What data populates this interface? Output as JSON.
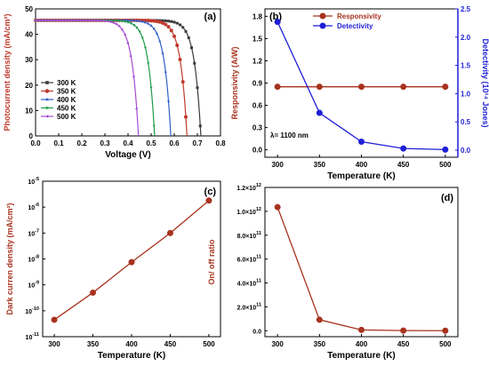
{
  "chart_data": [
    {
      "panel": "(a)",
      "type": "line",
      "xlabel": "Voltage (V)",
      "ylabel": "Photocurrent density (mA/cm²)",
      "xlim": [
        0.0,
        0.8
      ],
      "ylim": [
        0,
        50
      ],
      "xticks": [
        "0.0",
        "0.1",
        "0.2",
        "0.3",
        "0.4",
        "0.5",
        "0.6",
        "0.7",
        "0.8"
      ],
      "yticks": [
        "0",
        "10",
        "20",
        "30",
        "40",
        "50"
      ],
      "legend_position": "bottom-left",
      "series": [
        {
          "name": "300 K",
          "color": "#3a3a3a",
          "voc": 0.715
        },
        {
          "name": "350 K",
          "color": "#c0392b",
          "voc": 0.655
        },
        {
          "name": "400 K",
          "color": "#2e5fc9",
          "voc": 0.585
        },
        {
          "name": "450 K",
          "color": "#1f9a4a",
          "voc": 0.515
        },
        {
          "name": "500 K",
          "color": "#a64ad6",
          "voc": 0.445
        }
      ],
      "jsc": 45.5,
      "x_step": 0.0125
    },
    {
      "panel": "(b)",
      "type": "line",
      "xlabel": "Temperature (K)",
      "ylabel_left": "Responsivity (A/W)",
      "ylabel_right": "Detectivity (10¹⁴ Jones)",
      "x": [
        300,
        350,
        400,
        450,
        500
      ],
      "xticks": [
        "300",
        "350",
        "400",
        "450",
        "500"
      ],
      "xlim": [
        285,
        515
      ],
      "ylim_left": [
        -0.1,
        1.9
      ],
      "yticks_left": [
        "0.0",
        "0.3",
        "0.6",
        "0.9",
        "1.2",
        "1.5",
        "1.8"
      ],
      "ylim_right": [
        -0.125,
        2.5
      ],
      "yticks_right": [
        "0.0",
        "0.5",
        "1.0",
        "1.5",
        "2.0",
        "2.5"
      ],
      "legend_position": "top-center",
      "annotation": "λ= 1100 nm",
      "series": [
        {
          "name": "Responsivity",
          "axis": "left",
          "color": "#a8321e",
          "values": [
            0.85,
            0.85,
            0.85,
            0.85,
            0.85
          ]
        },
        {
          "name": "Detectivity",
          "axis": "right",
          "color": "#1f1fd6",
          "values": [
            2.27,
            0.66,
            0.15,
            0.03,
            0.01
          ]
        }
      ]
    },
    {
      "panel": "(c)",
      "type": "line",
      "scale": "log",
      "xlabel": "Temperature (K)",
      "ylabel": "Dark curren density (mA/cm²)",
      "x": [
        300,
        350,
        400,
        450,
        500
      ],
      "xticks": [
        "300",
        "350",
        "400",
        "450",
        "500"
      ],
      "xlim": [
        285,
        515
      ],
      "ylim": [
        1e-11,
        1e-05
      ],
      "yticks": [
        {
          "b": "10",
          "e": "-11"
        },
        {
          "b": "10",
          "e": "-10"
        },
        {
          "b": "10",
          "e": "-9"
        },
        {
          "b": "10",
          "e": "-8"
        },
        {
          "b": "10",
          "e": "-7"
        },
        {
          "b": "10",
          "e": "-6"
        },
        {
          "b": "10",
          "e": "-5"
        }
      ],
      "color": "#a8321e",
      "values": [
        4.5e-11,
        5e-10,
        7.5e-09,
        1e-07,
        1.8e-06
      ]
    },
    {
      "panel": "(d)",
      "type": "line",
      "xlabel": "Temperature (K)",
      "ylabel": "On/ off ratio",
      "x": [
        300,
        350,
        400,
        450,
        500
      ],
      "xticks": [
        "300",
        "350",
        "400",
        "450",
        "500"
      ],
      "xlim": [
        285,
        515
      ],
      "ylim": [
        -50000000000.0,
        1200000000000.0
      ],
      "yticks": [
        {
          "m": "0.0",
          "e": ""
        },
        {
          "m": "2.0×10",
          "e": "11"
        },
        {
          "m": "4.0×10",
          "e": "11"
        },
        {
          "m": "6.0×10",
          "e": "11"
        },
        {
          "m": "8.0×10",
          "e": "11"
        },
        {
          "m": "1.0×10",
          "e": "12"
        },
        {
          "m": "1.2×10",
          "e": "12"
        }
      ],
      "color": "#a8321e",
      "values": [
        1035000000000.0,
        92000000000.0,
        7000000000.0,
        1000000000.0,
        200000000.0
      ]
    }
  ]
}
